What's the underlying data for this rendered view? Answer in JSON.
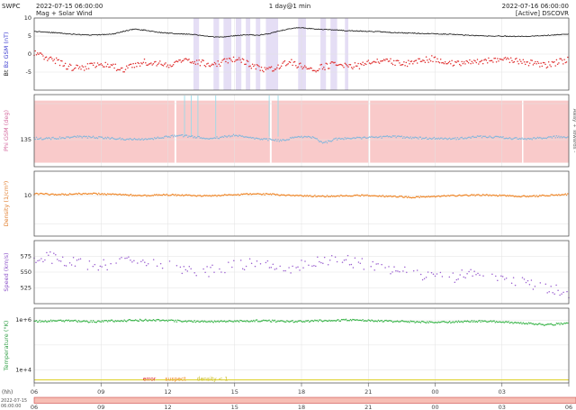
{
  "header": {
    "app": "SWPC",
    "start_time": "2022-07-15 06:00:00",
    "cadence": "1 day@1 min",
    "end_time": "2022-07-16 06:00:00",
    "subtitle": "Mag + Solar Wind",
    "status": "[Active] DSCOVR"
  },
  "footer": {
    "hh_label": "(hh)",
    "date_line1": "2022-07-15",
    "date_line2": "06:00:00",
    "tick_labels_row1": [
      "06",
      "09",
      "12",
      "15",
      "18",
      "21",
      "00",
      "03"
    ],
    "tick_labels_row2": [
      "06",
      "09",
      "12",
      "15",
      "18",
      "21",
      "00",
      "03",
      "06"
    ],
    "band_color": "#f6beb4",
    "band_border": "#cc4444"
  },
  "legend": {
    "error": "error",
    "suspect": "suspect",
    "density_lt1": "density < 1",
    "error_color": "#dd2222",
    "suspect_color": "#ee8822",
    "density_color": "#cbbd2a"
  },
  "chart_data": {
    "type": "scatter",
    "title": "Mag + Solar Wind, 1 day @ 1 min, DSCOVR",
    "xlabel": "(hh)",
    "x_range_hours": [
      6,
      30
    ],
    "x_tick_step_hours": 3,
    "x_hours": [
      6,
      6.5,
      7,
      7.5,
      8,
      8.5,
      9,
      9.5,
      10,
      10.5,
      11,
      11.5,
      12,
      12.5,
      13,
      13.5,
      14,
      14.5,
      15,
      15.5,
      16,
      16.5,
      17,
      17.5,
      18,
      18.5,
      19,
      19.5,
      20,
      20.5,
      21,
      21.5,
      22,
      22.5,
      23,
      23.5,
      24,
      24.5,
      25,
      25.5,
      26,
      26.5,
      27,
      27.5,
      28,
      28.5,
      29,
      29.5,
      30
    ],
    "panels": [
      {
        "name": "mag",
        "ylabel_parts": [
          {
            "text": "Bt ",
            "color": "#111111"
          },
          {
            "text": "Bz GSM (nT)",
            "color": "#3b3bd0"
          }
        ],
        "ylim": [
          -10,
          10
        ],
        "log": false,
        "yticks": [
          {
            "v": 10,
            "label": "10"
          },
          {
            "v": 5,
            "label": "5"
          },
          {
            "v": 0,
            "label": "0"
          },
          {
            "v": -5,
            "label": "-5"
          }
        ],
        "shaded_regions": {
          "color": "#cfc3ec",
          "opacity": 0.55,
          "ranges": [
            [
              13.15,
              13.4
            ],
            [
              14.05,
              14.3
            ],
            [
              14.5,
              14.85
            ],
            [
              15.05,
              15.3
            ],
            [
              15.5,
              15.7
            ],
            [
              15.95,
              16.15
            ],
            [
              16.4,
              16.95
            ],
            [
              17.85,
              18.2
            ],
            [
              18.85,
              19.1
            ],
            [
              19.3,
              19.6
            ],
            [
              19.95,
              20.1
            ]
          ]
        },
        "series": [
          {
            "name": "Bt",
            "color": "#111111",
            "style": "line",
            "noise": 0.12,
            "step": 0.04,
            "values": [
              6.3,
              6.1,
              5.9,
              5.6,
              5.4,
              5.3,
              5.4,
              5.5,
              6.3,
              6.9,
              6.6,
              6.1,
              5.8,
              5.6,
              5.5,
              5.2,
              4.8,
              4.7,
              5.1,
              5.4,
              5.2,
              5.6,
              6.4,
              7.1,
              7.3,
              7.0,
              6.8,
              6.7,
              6.5,
              6.4,
              6.3,
              6.2,
              6.0,
              5.9,
              5.8,
              5.7,
              5.6,
              5.5,
              5.4,
              5.2,
              5.1,
              5.0,
              5.0,
              4.9,
              4.9,
              5.0,
              5.2,
              5.4,
              5.5
            ]
          },
          {
            "name": "Bz",
            "color": "#e03030",
            "style": "dots",
            "noise": 0.9,
            "step": 0.05,
            "values": [
              0.5,
              -0.8,
              -2.0,
              -3.6,
              -4.0,
              -3.2,
              -2.6,
              -3.4,
              -4.2,
              -3.0,
              -2.2,
              -2.6,
              -3.0,
              -2.2,
              -1.6,
              -2.4,
              -3.4,
              -2.2,
              -1.2,
              -2.4,
              -3.8,
              -4.4,
              -3.2,
              -2.2,
              -3.4,
              -4.4,
              -3.6,
              -2.6,
              -3.0,
              -3.4,
              -2.6,
              -1.8,
              -2.2,
              -2.8,
              -2.4,
              -1.6,
              -1.2,
              -2.0,
              -2.8,
              -2.4,
              -2.0,
              -1.6,
              -1.2,
              -1.6,
              -2.2,
              -2.6,
              -3.2,
              -2.2,
              -1.6
            ]
          }
        ]
      },
      {
        "name": "phi",
        "ylabel": "Phi GSM (deg)",
        "ylabel_color": "#d46a9e",
        "right_label": "Away +    Towards -",
        "right_label_color": "#666666",
        "ylim": [
          0,
          360
        ],
        "log": false,
        "yticks": [
          {
            "v": 135,
            "label": "135"
          },
          {
            "v": 315,
            "label": ""
          }
        ],
        "band": {
          "from": 20,
          "to": 330,
          "color": "#f9caca"
        },
        "band_gaps_hours": [
          [
            12.3,
            12.38
          ],
          [
            16.58,
            16.66
          ],
          [
            21.02,
            21.08
          ],
          [
            27.9,
            27.96
          ]
        ],
        "spikes": {
          "color": "#9adbe8",
          "hours": [
            12.75,
            13.05,
            13.35,
            14.15,
            16.55,
            16.95
          ]
        },
        "series": [
          {
            "name": "Phi",
            "color": "#85b7dc",
            "style": "dots",
            "noise": 5,
            "step": 0.05,
            "values": [
              142,
              140,
              143,
              146,
              150,
              148,
              145,
              141,
              139,
              137,
              139,
              143,
              150,
              156,
              151,
              146,
              141,
              149,
              158,
              150,
              141,
              136,
              131,
              141,
              150,
              146,
              118,
              138,
              141,
              143,
              146,
              148,
              150,
              148,
              145,
              143,
              141,
              139,
              141,
              146,
              150,
              148,
              145,
              141,
              139,
              141,
              146,
              150,
              148
            ]
          }
        ]
      },
      {
        "name": "density",
        "ylabel": "Density (1/cm³)",
        "ylabel_color": "#e07b28",
        "ylim": [
          1,
          40
        ],
        "log": true,
        "yticks": [
          {
            "v": 10,
            "label": "10"
          },
          {
            "v": 2,
            "label": ""
          }
        ],
        "series": [
          {
            "name": "Density",
            "color": "#ef8423",
            "style": "dots",
            "noise": 0.04,
            "step": 0.05,
            "values": [
              11.0,
              11.0,
              10.6,
              10.8,
              11.0,
              11.2,
              11.0,
              10.8,
              10.5,
              10.2,
              10.0,
              10.3,
              10.5,
              10.2,
              10.0,
              9.8,
              10.0,
              10.2,
              10.5,
              10.8,
              11.0,
              10.8,
              10.5,
              10.2,
              10.0,
              9.8,
              9.6,
              9.8,
              10.0,
              10.2,
              10.0,
              9.8,
              9.5,
              9.3,
              9.1,
              9.3,
              9.5,
              9.8,
              10.0,
              10.2,
              10.4,
              10.2,
              10.0,
              9.8,
              9.6,
              9.8,
              10.0,
              10.4,
              10.8
            ]
          }
        ]
      },
      {
        "name": "speed",
        "ylabel": "Speed (km/s)",
        "ylabel_color": "#8a4fc8",
        "ylim": [
          500,
          600
        ],
        "log": false,
        "yticks": [
          {
            "v": 575,
            "label": "575"
          },
          {
            "v": 550,
            "label": "550"
          },
          {
            "v": 525,
            "label": "525"
          }
        ],
        "series": [
          {
            "name": "Speed",
            "color": "#9a5fd0",
            "style": "dots",
            "noise": 9,
            "step": 0.08,
            "dropout": 0.3,
            "values": [
              572,
              575,
              571,
              568,
              565,
              562,
              560,
              563,
              566,
              570,
              568,
              565,
              560,
              556,
              552,
              550,
              553,
              556,
              560,
              563,
              565,
              562,
              558,
              555,
              560,
              565,
              568,
              570,
              568,
              565,
              562,
              558,
              555,
              551,
              548,
              545,
              542,
              540,
              543,
              546,
              548,
              545,
              540,
              536,
              532,
              528,
              524,
              520,
              516
            ]
          }
        ]
      },
      {
        "name": "temperature",
        "ylabel": "Temperature (°K)",
        "ylabel_color": "#2f9e44",
        "ylim": [
          3000,
          3000000
        ],
        "log": true,
        "yticks": [
          {
            "v": 1000000,
            "label": "1e+6"
          },
          {
            "v": 100000,
            "label": ""
          },
          {
            "v": 10000,
            "label": "1e+4"
          }
        ],
        "hline": {
          "v": 4000,
          "color": "#e0d435"
        },
        "series": [
          {
            "name": "Temperature",
            "color": "#3ab54a",
            "style": "dots",
            "noise": 0.08,
            "step": 0.05,
            "values": [
              900000,
              920000,
              950000,
              930000,
              900000,
              880000,
              900000,
              930000,
              950000,
              980000,
              1000000,
              980000,
              950000,
              920000,
              900000,
              880000,
              860000,
              880000,
              900000,
              920000,
              950000,
              930000,
              900000,
              880000,
              900000,
              920000,
              950000,
              980000,
              1000000,
              980000,
              950000,
              920000,
              900000,
              880000,
              850000,
              820000,
              800000,
              820000,
              850000,
              880000,
              900000,
              880000,
              850000,
              800000,
              750000,
              700000,
              650000,
              700000,
              750000
            ]
          }
        ]
      }
    ]
  }
}
